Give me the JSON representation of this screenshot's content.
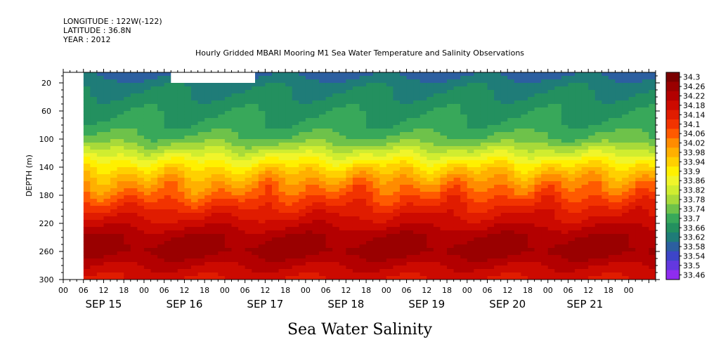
{
  "header": {
    "longitude": "LONGITUDE : 122W(-122)",
    "latitude": "LATITUDE : 36.8N",
    "year": "YEAR : 2012"
  },
  "chart_data": {
    "type": "heatmap",
    "title": "Hourly Gridded MBARI Mooring M1 Sea Water Temperature and Salinity Observations",
    "bottom_title": "Sea Water Salinity",
    "ylabel": "DEPTH (m)",
    "ylim": [
      300,
      5
    ],
    "y_ticks": [
      20,
      60,
      100,
      140,
      180,
      220,
      260,
      300
    ],
    "x_start_hour": 0,
    "x_end_hour": 176,
    "hour_ticks": [
      {
        "h": 0,
        "label": "00"
      },
      {
        "h": 6,
        "label": "06"
      },
      {
        "h": 12,
        "label": "12"
      },
      {
        "h": 18,
        "label": "18"
      },
      {
        "h": 24,
        "label": "00"
      },
      {
        "h": 30,
        "label": "06"
      },
      {
        "h": 36,
        "label": "12"
      },
      {
        "h": 42,
        "label": "18"
      },
      {
        "h": 48,
        "label": "00"
      },
      {
        "h": 54,
        "label": "06"
      },
      {
        "h": 60,
        "label": "12"
      },
      {
        "h": 66,
        "label": "18"
      },
      {
        "h": 72,
        "label": "00"
      },
      {
        "h": 78,
        "label": "06"
      },
      {
        "h": 84,
        "label": "12"
      },
      {
        "h": 90,
        "label": "18"
      },
      {
        "h": 96,
        "label": "00"
      },
      {
        "h": 102,
        "label": "06"
      },
      {
        "h": 108,
        "label": "12"
      },
      {
        "h": 114,
        "label": "18"
      },
      {
        "h": 120,
        "label": "00"
      },
      {
        "h": 126,
        "label": "06"
      },
      {
        "h": 132,
        "label": "12"
      },
      {
        "h": 138,
        "label": "18"
      },
      {
        "h": 144,
        "label": "00"
      },
      {
        "h": 150,
        "label": "06"
      },
      {
        "h": 156,
        "label": "12"
      },
      {
        "h": 162,
        "label": "18"
      },
      {
        "h": 168,
        "label": "00"
      }
    ],
    "date_labels": [
      {
        "h": 12,
        "label": "SEP 15"
      },
      {
        "h": 36,
        "label": "SEP 16"
      },
      {
        "h": 60,
        "label": "SEP 17"
      },
      {
        "h": 84,
        "label": "SEP 18"
      },
      {
        "h": 108,
        "label": "SEP 19"
      },
      {
        "h": 132,
        "label": "SEP 20"
      },
      {
        "h": 155,
        "label": "SEP 21"
      }
    ],
    "data_start_hour": 6,
    "data_gaps": [
      {
        "h0": 0,
        "h1": 6,
        "d0": 5,
        "d1": 300
      },
      {
        "h0": 32,
        "h1": 57,
        "d0": 5,
        "d1": 20
      }
    ],
    "colorbar": {
      "levels": [
        "34.3",
        "34.26",
        "34.22",
        "34.18",
        "34.14",
        "34.1",
        "34.06",
        "34.02",
        "33.98",
        "33.94",
        "33.9",
        "33.86",
        "33.82",
        "33.78",
        "33.74",
        "33.7",
        "33.66",
        "33.62",
        "33.58",
        "33.54",
        "33.5",
        "33.46"
      ],
      "colors": [
        "#7a0000",
        "#9a0000",
        "#b30000",
        "#cc0a00",
        "#e01c00",
        "#f23300",
        "#ff5a00",
        "#ff8c00",
        "#ffb000",
        "#ffd000",
        "#fff000",
        "#f0f52a",
        "#d0ed30",
        "#a8da3a",
        "#6ec24a",
        "#38a85a",
        "#23905f",
        "#1f7c78",
        "#2c5fa0",
        "#3d45c8",
        "#6338e0",
        "#8f2cf0"
      ]
    },
    "depth_profile": [
      {
        "d": 5,
        "v": 33.56
      },
      {
        "d": 20,
        "v": 33.6
      },
      {
        "d": 40,
        "v": 33.63
      },
      {
        "d": 60,
        "v": 33.65
      },
      {
        "d": 80,
        "v": 33.67
      },
      {
        "d": 100,
        "v": 33.71
      },
      {
        "d": 120,
        "v": 33.8
      },
      {
        "d": 140,
        "v": 33.9
      },
      {
        "d": 160,
        "v": 33.97
      },
      {
        "d": 180,
        "v": 34.03
      },
      {
        "d": 200,
        "v": 34.1
      },
      {
        "d": 220,
        "v": 34.16
      },
      {
        "d": 240,
        "v": 34.22
      },
      {
        "d": 260,
        "v": 34.24
      },
      {
        "d": 280,
        "v": 34.18
      },
      {
        "d": 300,
        "v": 34.14
      }
    ]
  }
}
